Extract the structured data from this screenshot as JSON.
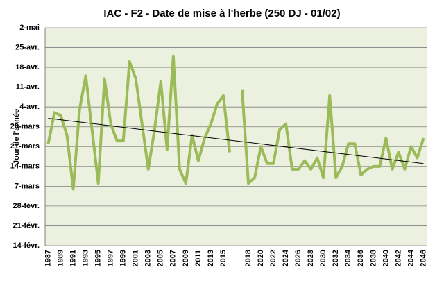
{
  "chart_data": {
    "type": "line",
    "title": "IAC - F2 - Date de mise à l'herbe (250 DJ - 01/02)",
    "y_axis_label": "Jour de l'année",
    "categories": [
      "1987",
      null,
      "1989",
      null,
      "1991",
      null,
      "1993",
      null,
      "1995",
      null,
      "1997",
      null,
      "1999",
      null,
      "2001",
      null,
      "2003",
      null,
      "2005",
      null,
      "2007",
      null,
      "2009",
      null,
      "2011",
      null,
      "2013",
      null,
      "2015",
      null,
      null,
      null,
      "2018",
      null,
      "2020",
      null,
      "2022",
      null,
      "2024",
      null,
      "2026",
      null,
      "2028",
      null,
      "2030",
      null,
      "2032",
      null,
      "2034",
      null,
      "2036",
      null,
      "2038",
      null,
      "2040",
      null,
      "2042",
      null,
      "2044",
      null,
      "2046"
    ],
    "series": [
      {
        "color": "#9bbb59",
        "values": [
          81,
          92,
          91,
          84,
          65,
          93,
          105,
          86,
          67,
          104,
          88,
          82,
          82,
          110,
          104,
          88,
          72,
          86,
          103,
          79,
          112,
          72,
          67,
          84,
          75,
          83,
          88,
          95,
          98,
          78,
          null,
          100,
          67,
          69,
          80,
          74,
          74,
          86,
          88,
          72,
          72,
          75,
          72,
          76,
          69,
          98,
          69,
          73,
          81,
          81,
          70,
          72,
          73,
          73,
          83,
          72,
          78,
          72,
          80,
          76,
          83
        ]
      }
    ],
    "trendline": {
      "color": "#000000",
      "start": 90,
      "end": 74
    },
    "ylim": [
      45,
      122
    ],
    "yticks": [
      {
        "value": 45,
        "label": "14-févr."
      },
      {
        "value": 52,
        "label": "21-févr."
      },
      {
        "value": 59,
        "label": "28-févr."
      },
      {
        "value": 66,
        "label": "7-mars"
      },
      {
        "value": 73,
        "label": "14-mars"
      },
      {
        "value": 80,
        "label": "21-mars"
      },
      {
        "value": 87,
        "label": "28-mars"
      },
      {
        "value": 94,
        "label": "4-avr."
      },
      {
        "value": 101,
        "label": "11-avr."
      },
      {
        "value": 108,
        "label": "18-avr."
      },
      {
        "value": 115,
        "label": "25-avr."
      },
      {
        "value": 122,
        "label": "2-mai"
      }
    ],
    "grid": true,
    "background": "#ebf1de"
  }
}
